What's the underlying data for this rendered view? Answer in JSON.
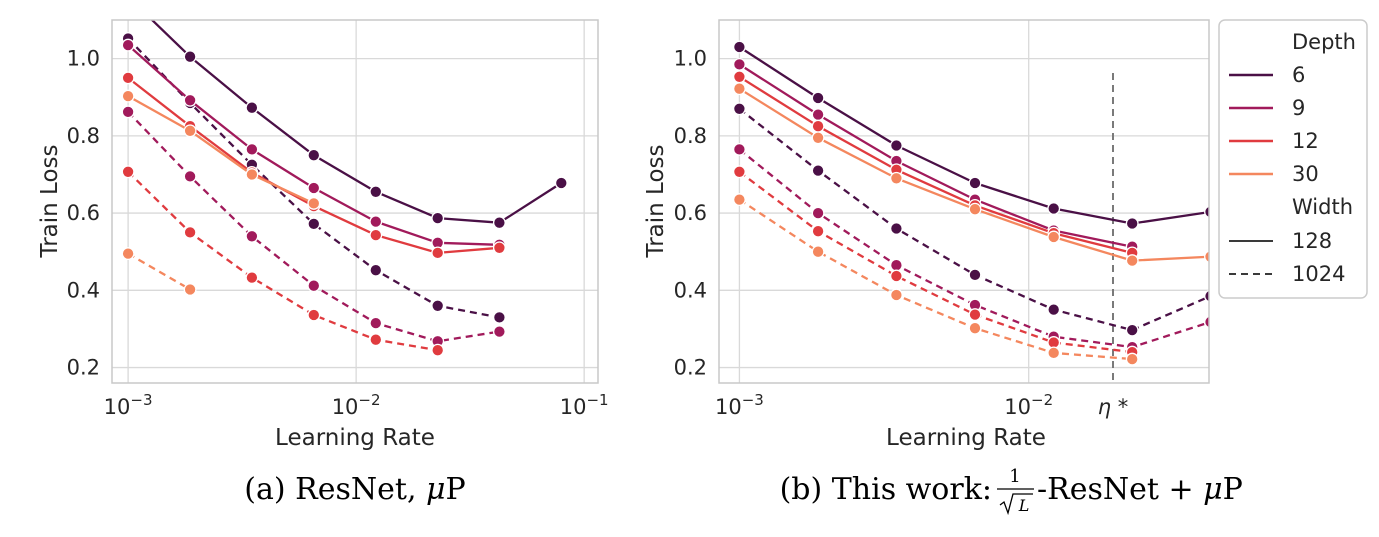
{
  "chart_data": [
    {
      "type": "line",
      "caption_prefix": "(a)",
      "caption_text": "ResNet, ",
      "caption_mu": "μ",
      "caption_p": "P",
      "xlabel": "Learning Rate",
      "ylabel": "Train Loss",
      "xscale": "log",
      "xlim": [
        0.00085,
        0.115
      ],
      "ylim": [
        0.16,
        1.1
      ],
      "grid": true,
      "x_ticks": [
        0.001,
        0.01,
        0.1
      ],
      "x_tick_labels": [
        {
          "base": "10",
          "exp": "−3"
        },
        {
          "base": "10",
          "exp": "−2"
        },
        {
          "base": "10",
          "exp": "−1"
        }
      ],
      "y_ticks": [
        0.2,
        0.4,
        0.6,
        0.8,
        1.0
      ],
      "y_tick_labels": [
        "0.2",
        "0.4",
        "0.6",
        "0.8",
        "1.0"
      ],
      "series": [
        {
          "depth": "6",
          "width": "128",
          "x": [
            0.001,
            0.00187,
            0.00349,
            0.00652,
            0.0122,
            0.0228,
            0.0425,
            0.0794
          ],
          "y": [
            1.16,
            1.005,
            0.873,
            0.75,
            0.655,
            0.587,
            0.575,
            0.678
          ]
        },
        {
          "depth": "9",
          "width": "128",
          "x": [
            0.001,
            0.00187,
            0.00349,
            0.00652,
            0.0122,
            0.0228,
            0.0425
          ],
          "y": [
            1.035,
            0.892,
            0.765,
            0.665,
            0.578,
            0.523,
            0.518
          ]
        },
        {
          "depth": "12",
          "width": "128",
          "x": [
            0.001,
            0.00187,
            0.00349,
            0.00652,
            0.0122,
            0.0228,
            0.0425
          ],
          "y": [
            0.95,
            0.825,
            0.705,
            0.618,
            0.543,
            0.497,
            0.51
          ]
        },
        {
          "depth": "30",
          "width": "128",
          "x": [
            0.001,
            0.00187,
            0.00349,
            0.00652
          ],
          "y": [
            0.903,
            0.813,
            0.7,
            0.625
          ]
        },
        {
          "depth": "6",
          "width": "1024",
          "x": [
            0.001,
            0.00187,
            0.00349,
            0.00652,
            0.0122,
            0.0228,
            0.0425
          ],
          "y": [
            1.052,
            0.885,
            0.725,
            0.572,
            0.452,
            0.36,
            0.33
          ]
        },
        {
          "depth": "9",
          "width": "1024",
          "x": [
            0.001,
            0.00187,
            0.00349,
            0.00652,
            0.0122,
            0.0228,
            0.0425
          ],
          "y": [
            0.862,
            0.695,
            0.54,
            0.412,
            0.315,
            0.268,
            0.293
          ]
        },
        {
          "depth": "12",
          "width": "1024",
          "x": [
            0.001,
            0.00187,
            0.00349,
            0.00652,
            0.0122,
            0.0228
          ],
          "y": [
            0.707,
            0.55,
            0.433,
            0.336,
            0.272,
            0.245
          ]
        },
        {
          "depth": "30",
          "width": "1024",
          "x": [
            0.001,
            0.00187
          ],
          "y": [
            0.495,
            0.402
          ]
        }
      ]
    },
    {
      "type": "line",
      "caption_prefix": "(b)",
      "caption_text": "This work: ",
      "caption_frac_num": "1",
      "caption_frac_den": "L",
      "caption_suffix": "-ResNet + ",
      "caption_mu": "μ",
      "caption_p": "P",
      "xlabel": "Learning Rate",
      "ylabel": "Train Loss",
      "xscale": "log",
      "xlim": [
        0.00085,
        0.042
      ],
      "ylim": [
        0.16,
        1.1
      ],
      "grid": true,
      "x_ticks": [
        0.001,
        0.01
      ],
      "x_tick_labels": [
        {
          "base": "10",
          "exp": "−3"
        },
        {
          "base": "10",
          "exp": "−2"
        }
      ],
      "extra_tick_label": "η *",
      "eta_star": 0.0228,
      "y_ticks": [
        0.2,
        0.4,
        0.6,
        0.8,
        1.0
      ],
      "y_tick_labels": [
        "0.2",
        "0.4",
        "0.6",
        "0.8",
        "1.0"
      ],
      "series": [
        {
          "depth": "6",
          "width": "128",
          "x": [
            0.001,
            0.00187,
            0.00349,
            0.00652,
            0.0122,
            0.0228,
            0.0425
          ],
          "y": [
            1.03,
            0.898,
            0.775,
            0.678,
            0.612,
            0.573,
            0.603
          ]
        },
        {
          "depth": "9",
          "width": "128",
          "x": [
            0.001,
            0.00187,
            0.00349,
            0.00652,
            0.0122,
            0.0228
          ],
          "y": [
            0.985,
            0.855,
            0.735,
            0.635,
            0.555,
            0.513
          ]
        },
        {
          "depth": "12",
          "width": "128",
          "x": [
            0.001,
            0.00187,
            0.00349,
            0.00652,
            0.0122,
            0.0228
          ],
          "y": [
            0.953,
            0.825,
            0.712,
            0.62,
            0.548,
            0.497
          ]
        },
        {
          "depth": "30",
          "width": "128",
          "x": [
            0.001,
            0.00187,
            0.00349,
            0.00652,
            0.0122,
            0.0228,
            0.0425
          ],
          "y": [
            0.922,
            0.795,
            0.69,
            0.61,
            0.538,
            0.477,
            0.487
          ]
        },
        {
          "depth": "6",
          "width": "1024",
          "x": [
            0.001,
            0.00187,
            0.00349,
            0.00652,
            0.0122,
            0.0228,
            0.0425
          ],
          "y": [
            0.87,
            0.71,
            0.56,
            0.44,
            0.35,
            0.297,
            0.385
          ]
        },
        {
          "depth": "9",
          "width": "1024",
          "x": [
            0.001,
            0.00187,
            0.00349,
            0.00652,
            0.0122,
            0.0228,
            0.0425
          ],
          "y": [
            0.765,
            0.6,
            0.465,
            0.362,
            0.28,
            0.253,
            0.318
          ]
        },
        {
          "depth": "12",
          "width": "1024",
          "x": [
            0.001,
            0.00187,
            0.00349,
            0.00652,
            0.0122,
            0.0228
          ],
          "y": [
            0.707,
            0.553,
            0.437,
            0.337,
            0.265,
            0.24
          ]
        },
        {
          "depth": "30",
          "width": "1024",
          "x": [
            0.001,
            0.00187,
            0.00349,
            0.00652,
            0.0122,
            0.0228
          ],
          "y": [
            0.635,
            0.5,
            0.388,
            0.302,
            0.238,
            0.222
          ]
        }
      ]
    }
  ],
  "legend": {
    "depth_title": "Depth",
    "depth_items": [
      {
        "label": "6",
        "color": "#4a1046"
      },
      {
        "label": "9",
        "color": "#a11a5b"
      },
      {
        "label": "12",
        "color": "#e03b3f"
      },
      {
        "label": "30",
        "color": "#f4875e"
      }
    ],
    "width_title": "Width",
    "width_items": [
      {
        "label": "128",
        "style": "solid"
      },
      {
        "label": "1024",
        "style": "dashed"
      }
    ]
  },
  "colors": {
    "6": "#4a1046",
    "9": "#a11a5b",
    "12": "#e03b3f",
    "30": "#f4875e",
    "neutral": "#3a3a3a",
    "grid": "#d9d9d9"
  }
}
